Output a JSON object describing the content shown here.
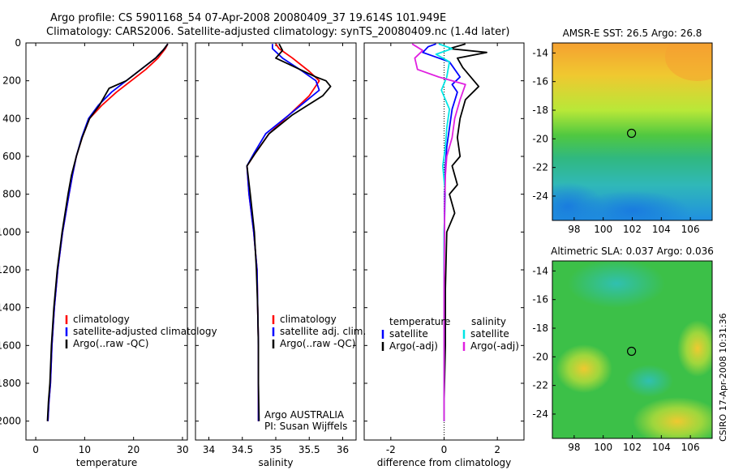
{
  "header": {
    "line1": "Argo profile: CS 5901168_54 07-Apr-2008 20080409_37 19.614S 101.949E",
    "line2": "Climatology: CARS2006. Satellite-adjusted climatology: synTS_20080409.nc (1.4d later)"
  },
  "side_label": "CSIRO 17-Apr-2008 10:31:36",
  "colors": {
    "climatology": "#ff0000",
    "satellite": "#0000ff",
    "argo": "#000000",
    "sal_satellite": "#00e5e5",
    "sal_argo": "#e020e0"
  },
  "chart_data": [
    {
      "type": "line",
      "id": "temperature",
      "xlabel": "temperature",
      "ylabel": "",
      "xlim": [
        -2,
        31
      ],
      "ylim": [
        2100,
        0
      ],
      "xticks": [
        0,
        10,
        20,
        30
      ],
      "yticks": [
        0,
        200,
        400,
        600,
        800,
        1000,
        1200,
        1400,
        1600,
        1800,
        2000
      ],
      "legend": [
        "climatology",
        "satellite-adjusted climatology",
        "Argo(..raw -QC)"
      ],
      "series": [
        {
          "name": "climatology",
          "color_key": "climatology",
          "x": [
            27.0,
            26.5,
            25.0,
            22.5,
            19.5,
            16.5,
            13.5,
            11.0,
            9.5,
            8.3,
            7.5,
            6.8,
            5.5,
            4.5,
            3.8,
            3.3,
            3.0,
            2.7,
            2.5
          ],
          "y": [
            5,
            30,
            80,
            140,
            200,
            260,
            330,
            400,
            500,
            600,
            700,
            800,
            1000,
            1200,
            1400,
            1600,
            1800,
            1900,
            2000
          ]
        },
        {
          "name": "satellite-adjusted climatology",
          "color_key": "satellite",
          "x": [
            27.0,
            26.3,
            24.5,
            21.5,
            18.5,
            15.5,
            12.8,
            10.8,
            9.4,
            8.3,
            7.5,
            6.8,
            5.5,
            4.5,
            3.8,
            3.3,
            3.0,
            2.7,
            2.5
          ],
          "y": [
            5,
            30,
            80,
            140,
            200,
            260,
            330,
            400,
            500,
            600,
            700,
            800,
            1000,
            1200,
            1400,
            1600,
            1800,
            1900,
            2000
          ]
        },
        {
          "name": "Argo(..raw -QC)",
          "color_key": "argo",
          "x": [
            27.0,
            26.0,
            24.5,
            22.0,
            20.0,
            18.5,
            15.0,
            13.0,
            11.0,
            9.5,
            8.3,
            7.3,
            6.6,
            5.4,
            4.4,
            3.7,
            3.2,
            2.9,
            2.6,
            2.4
          ],
          "y": [
            5,
            40,
            80,
            130,
            170,
            200,
            240,
            330,
            400,
            500,
            600,
            700,
            800,
            1000,
            1200,
            1400,
            1600,
            1800,
            1900,
            2000
          ]
        }
      ]
    },
    {
      "type": "line",
      "id": "salinity",
      "xlabel": "salinity",
      "ylabel": "",
      "xlim": [
        33.8,
        36.2
      ],
      "ylim": [
        2100,
        0
      ],
      "xticks": [
        34,
        34.5,
        35,
        35.5,
        36
      ],
      "yticks": [
        0,
        200,
        400,
        600,
        800,
        1000,
        1200,
        1400,
        1600,
        1800,
        2000
      ],
      "legend": [
        "climatology",
        "satellite adj. clim.",
        "Argo(..raw -QC)"
      ],
      "annotation": [
        "Argo AUSTRALIA",
        "PI: Susan Wijffels"
      ],
      "series": [
        {
          "name": "climatology",
          "color_key": "climatology",
          "x": [
            35.0,
            35.05,
            35.25,
            35.5,
            35.65,
            35.5,
            35.2,
            34.9,
            34.7,
            34.57,
            34.6,
            34.67,
            34.72,
            34.73,
            34.74,
            34.74,
            34.74
          ],
          "y": [
            5,
            30,
            80,
            150,
            200,
            280,
            380,
            480,
            580,
            650,
            800,
            1000,
            1200,
            1400,
            1600,
            1800,
            2000
          ]
        },
        {
          "name": "satellite adj. clim.",
          "color_key": "satellite",
          "x": [
            34.95,
            34.95,
            35.1,
            35.4,
            35.6,
            35.65,
            35.2,
            34.85,
            34.68,
            34.57,
            34.6,
            34.67,
            34.72,
            34.73,
            34.74,
            34.74,
            34.74
          ],
          "y": [
            5,
            30,
            80,
            150,
            200,
            250,
            380,
            480,
            580,
            650,
            800,
            1000,
            1200,
            1400,
            1600,
            1800,
            2000
          ]
        },
        {
          "name": "Argo(..raw -QC)",
          "color_key": "argo",
          "x": [
            35.05,
            35.1,
            35.0,
            35.3,
            35.6,
            35.75,
            35.82,
            35.7,
            35.25,
            34.9,
            34.7,
            34.57,
            34.62,
            34.68,
            34.71,
            34.73,
            34.74,
            34.74,
            34.75
          ],
          "y": [
            5,
            40,
            80,
            130,
            180,
            200,
            230,
            280,
            380,
            480,
            580,
            650,
            800,
            1000,
            1200,
            1400,
            1600,
            1800,
            2000
          ]
        }
      ]
    },
    {
      "type": "line",
      "id": "difference",
      "xlabel": "difference from climatology",
      "ylabel": "",
      "xlim": [
        -3,
        3
      ],
      "ylim": [
        2100,
        0
      ],
      "xticks": [
        -2,
        0,
        2
      ],
      "yticks": [
        0,
        200,
        400,
        600,
        800,
        1000,
        1200,
        1400,
        1600,
        1800,
        2000
      ],
      "legend_groups": [
        {
          "title": "temperature",
          "items": [
            "satellite",
            "Argo(-adj)"
          ]
        },
        {
          "title": "salinity",
          "items": [
            "satellite",
            "Argo(-adj)"
          ]
        }
      ],
      "series": [
        {
          "name": "temperature satellite",
          "color_key": "satellite",
          "x": [
            -0.3,
            -0.6,
            -0.8,
            0.2,
            0.6,
            0.3,
            0.5,
            0.3,
            0.2,
            0.1,
            0.05,
            0.02,
            0.01,
            0,
            0,
            0,
            0
          ],
          "y": [
            5,
            20,
            50,
            100,
            180,
            220,
            260,
            350,
            450,
            550,
            650,
            800,
            1000,
            1200,
            1500,
            1800,
            2000
          ]
        },
        {
          "name": "temperature Argo(-adj)",
          "color_key": "argo",
          "x": [
            0.8,
            0.2,
            1.6,
            0.5,
            0.7,
            1.3,
            0.8,
            0.6,
            0.5,
            0.6,
            0.3,
            0.5,
            0.2,
            0.4,
            0.1,
            0.05,
            0.05,
            0,
            0
          ],
          "y": [
            5,
            30,
            50,
            80,
            130,
            230,
            300,
            400,
            500,
            600,
            650,
            750,
            800,
            900,
            1000,
            1300,
            1600,
            1900,
            2000
          ]
        },
        {
          "name": "salinity satellite",
          "color_key": "sal_satellite",
          "x": [
            -0.2,
            0.3,
            -0.3,
            0.2,
            0.1,
            -0.1,
            0.2,
            0.1,
            0.05,
            -0.05,
            0.05,
            0,
            0,
            0,
            0
          ],
          "y": [
            5,
            30,
            60,
            100,
            180,
            250,
            350,
            450,
            550,
            650,
            800,
            1000,
            1400,
            1800,
            2000
          ]
        },
        {
          "name": "salinity Argo(-adj)",
          "color_key": "sal_argo",
          "x": [
            -1.2,
            -0.8,
            -1.1,
            -1.0,
            -0.2,
            0.8,
            0.6,
            0.4,
            0.3,
            0.1,
            0.05,
            0.02,
            0,
            0
          ],
          "y": [
            5,
            40,
            80,
            140,
            180,
            220,
            300,
            400,
            500,
            600,
            700,
            900,
            1300,
            2000
          ]
        }
      ]
    },
    {
      "type": "heatmap",
      "id": "sst",
      "title": "AMSR-E SST: 26.5 Argo: 26.8",
      "xlim": [
        96.5,
        107.5
      ],
      "ylim": [
        -25.7,
        -13.3
      ],
      "xticks": [
        98,
        100,
        102,
        104,
        106
      ],
      "yticks": [
        -14,
        -16,
        -18,
        -20,
        -22,
        -24
      ],
      "marker": {
        "lon": 101.949,
        "lat": -19.614
      }
    },
    {
      "type": "heatmap",
      "id": "sla",
      "title": "Altimetric SLA: 0.037 Argo: 0.036",
      "xlim": [
        96.5,
        107.5
      ],
      "ylim": [
        -25.7,
        -13.3
      ],
      "xticks": [
        98,
        100,
        102,
        104,
        106
      ],
      "yticks": [
        -14,
        -16,
        -18,
        -20,
        -22,
        -24
      ],
      "marker": {
        "lon": 101.949,
        "lat": -19.614
      }
    }
  ]
}
